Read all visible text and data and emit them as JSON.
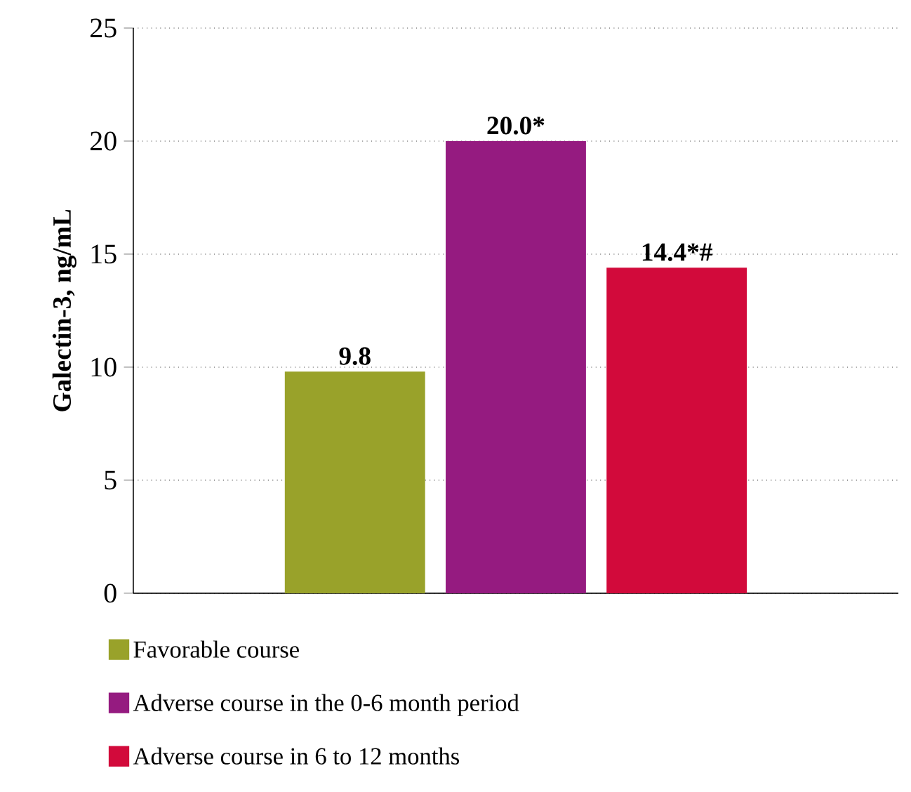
{
  "chart_data": {
    "type": "bar",
    "ylabel": "Galectin-3, ng/mL",
    "categories": [
      null
    ],
    "series": [
      {
        "name": "Favorable course",
        "color": "#99a22a",
        "values": [
          9.8
        ],
        "value_labels": [
          "9.8"
        ]
      },
      {
        "name": "Adverse course in the 0-6 month period",
        "color": "#951b80",
        "values": [
          20.0
        ],
        "value_labels": [
          "20.0*"
        ]
      },
      {
        "name": "Adverse course in 6 to 12 months",
        "color": "#d20a3b",
        "values": [
          14.4
        ],
        "value_labels": [
          "14.4*#"
        ]
      }
    ],
    "ylim": [
      0,
      25
    ],
    "yticks": [
      0,
      5,
      10,
      15,
      20,
      25
    ],
    "grid": "y",
    "legend": "bottom"
  }
}
